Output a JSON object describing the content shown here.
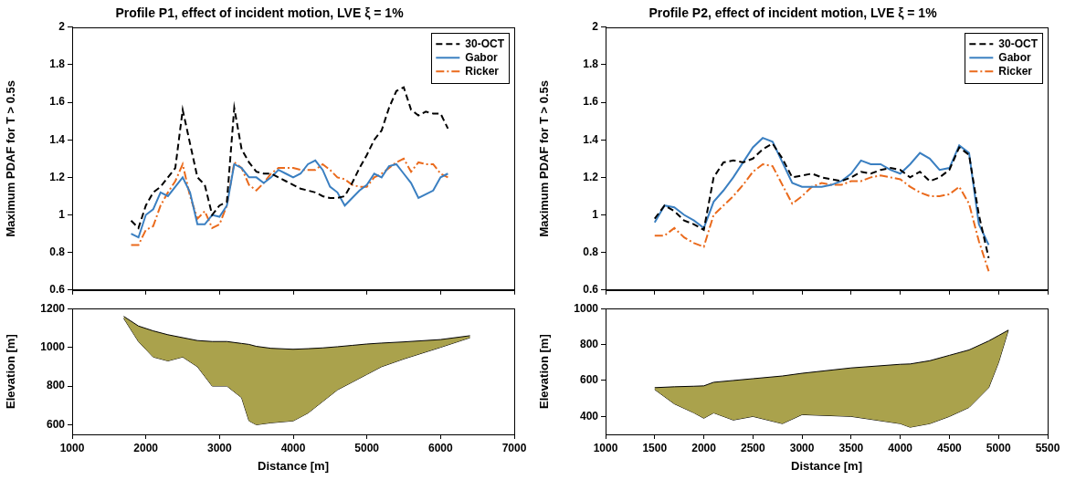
{
  "chart_data": [
    {
      "type": "line",
      "title": "Profile P1, effect of incident motion, LVE ξ = 1%",
      "ylabel": "Maximum PDAF for T > 0.5s",
      "x": [
        1800,
        1900,
        2000,
        2100,
        2200,
        2300,
        2400,
        2500,
        2600,
        2700,
        2800,
        2900,
        3000,
        3100,
        3200,
        3300,
        3400,
        3500,
        3600,
        3700,
        3800,
        3900,
        4000,
        4100,
        4200,
        4300,
        4400,
        4500,
        4600,
        4700,
        4800,
        4900,
        5000,
        5100,
        5200,
        5300,
        5400,
        5500,
        5600,
        5700,
        5800,
        5900,
        6000,
        6100
      ],
      "series": [
        {
          "name": "30-OCT",
          "color": "#000000",
          "line_style": "dashed",
          "values": [
            0.97,
            0.93,
            1.05,
            1.12,
            1.15,
            1.2,
            1.25,
            1.56,
            1.38,
            1.2,
            1.16,
            1.0,
            1.05,
            1.07,
            1.57,
            1.35,
            1.28,
            1.23,
            1.22,
            1.22,
            1.2,
            1.18,
            1.16,
            1.14,
            1.13,
            1.12,
            1.1,
            1.09,
            1.09,
            1.1,
            1.17,
            1.25,
            1.32,
            1.4,
            1.45,
            1.57,
            1.66,
            1.68,
            1.56,
            1.53,
            1.55,
            1.54,
            1.54,
            1.46
          ]
        },
        {
          "name": "Gabor",
          "color": "#3a7fc1",
          "line_style": "solid",
          "values": [
            0.9,
            0.88,
            1.0,
            1.03,
            1.12,
            1.1,
            1.15,
            1.2,
            1.12,
            0.95,
            0.95,
            1.0,
            0.99,
            1.05,
            1.27,
            1.25,
            1.2,
            1.2,
            1.17,
            1.2,
            1.24,
            1.22,
            1.2,
            1.22,
            1.27,
            1.29,
            1.24,
            1.15,
            1.12,
            1.05,
            1.09,
            1.13,
            1.16,
            1.22,
            1.2,
            1.26,
            1.27,
            1.22,
            1.17,
            1.09,
            1.11,
            1.13,
            1.2,
            1.22
          ]
        },
        {
          "name": "Ricker",
          "color": "#ea6a1c",
          "line_style": "dashdot",
          "values": [
            0.84,
            0.84,
            0.92,
            0.94,
            1.05,
            1.12,
            1.18,
            1.27,
            1.1,
            0.98,
            1.02,
            0.93,
            0.95,
            1.05,
            1.28,
            1.25,
            1.16,
            1.13,
            1.17,
            1.22,
            1.25,
            1.25,
            1.25,
            1.24,
            1.24,
            1.24,
            1.27,
            1.24,
            1.2,
            1.19,
            1.16,
            1.15,
            1.15,
            1.2,
            1.22,
            1.25,
            1.28,
            1.3,
            1.23,
            1.28,
            1.27,
            1.27,
            1.22,
            1.2
          ]
        }
      ],
      "xlim": [
        1000,
        7000
      ],
      "xticks": [
        1000,
        2000,
        3000,
        4000,
        5000,
        6000,
        7000
      ],
      "ylim": [
        0.6,
        2
      ],
      "yticks": [
        0.6,
        0.8,
        1,
        1.2,
        1.4,
        1.6,
        1.8,
        2
      ],
      "grid": false,
      "legend": "upper right",
      "tick_labels": "y"
    },
    {
      "type": "area",
      "xlabel": "Distance [m]",
      "ylabel": "Elevation [m]",
      "x": [
        1700,
        1900,
        2100,
        2300,
        2500,
        2700,
        2900,
        3100,
        3300,
        3400,
        3500,
        3700,
        4000,
        4200,
        4400,
        4600,
        4800,
        5000,
        5200,
        5500,
        6000,
        6400
      ],
      "series": [
        {
          "color": "#aaa24c",
          "values": [
            1160,
            1110,
            1085,
            1065,
            1050,
            1035,
            1030,
            1030,
            1020,
            1015,
            1005,
            995,
            990,
            993,
            997,
            1003,
            1010,
            1017,
            1022,
            1028,
            1040,
            1060
          ]
        },
        {
          "color": "#aaa24c",
          "values": [
            1150,
            1030,
            950,
            930,
            950,
            900,
            800,
            800,
            740,
            620,
            600,
            610,
            620,
            660,
            720,
            780,
            820,
            860,
            900,
            940,
            1000,
            1050
          ]
        }
      ],
      "xlim": [
        1000,
        7000
      ],
      "xticks": [
        1000,
        2000,
        3000,
        4000,
        5000,
        6000,
        7000
      ],
      "ylim": [
        550,
        1200
      ],
      "yticks": [
        600,
        800,
        1000,
        1200
      ],
      "grid": false
    },
    {
      "type": "line",
      "title": "Profile P2, effect of incident motion, LVE ξ = 1%",
      "ylabel": "Maximum PDAF for T > 0.5s",
      "x": [
        1500,
        1600,
        1700,
        1800,
        1900,
        2000,
        2100,
        2200,
        2300,
        2400,
        2500,
        2600,
        2700,
        2800,
        2900,
        3000,
        3100,
        3200,
        3300,
        3400,
        3500,
        3600,
        3700,
        3800,
        3900,
        4000,
        4100,
        4200,
        4300,
        4400,
        4500,
        4600,
        4700,
        4800,
        4900
      ],
      "series": [
        {
          "name": "30-OCT",
          "color": "#000000",
          "line_style": "dashed",
          "values": [
            0.98,
            1.05,
            1.02,
            0.97,
            0.95,
            0.92,
            1.2,
            1.28,
            1.29,
            1.28,
            1.3,
            1.35,
            1.38,
            1.3,
            1.2,
            1.21,
            1.22,
            1.2,
            1.19,
            1.18,
            1.2,
            1.23,
            1.22,
            1.24,
            1.25,
            1.24,
            1.2,
            1.23,
            1.18,
            1.2,
            1.24,
            1.36,
            1.32,
            1.0,
            0.77
          ]
        },
        {
          "name": "Gabor",
          "color": "#3a7fc1",
          "line_style": "solid",
          "values": [
            0.96,
            1.05,
            1.04,
            1.0,
            0.97,
            0.93,
            1.07,
            1.13,
            1.2,
            1.28,
            1.36,
            1.41,
            1.39,
            1.28,
            1.17,
            1.15,
            1.15,
            1.15,
            1.16,
            1.18,
            1.22,
            1.29,
            1.27,
            1.27,
            1.24,
            1.22,
            1.27,
            1.33,
            1.3,
            1.24,
            1.25,
            1.37,
            1.33,
            0.95,
            0.84
          ]
        },
        {
          "name": "Ricker",
          "color": "#ea6a1c",
          "line_style": "dashdot",
          "values": [
            0.89,
            0.89,
            0.93,
            0.88,
            0.85,
            0.83,
            1.0,
            1.05,
            1.1,
            1.16,
            1.23,
            1.27,
            1.26,
            1.16,
            1.06,
            1.1,
            1.15,
            1.17,
            1.16,
            1.16,
            1.18,
            1.18,
            1.2,
            1.21,
            1.2,
            1.19,
            1.15,
            1.12,
            1.1,
            1.1,
            1.11,
            1.15,
            1.06,
            0.86,
            0.7
          ]
        }
      ],
      "xlim": [
        1000,
        5500
      ],
      "xticks": [
        1000,
        1500,
        2000,
        2500,
        3000,
        3500,
        4000,
        4500,
        5000,
        5500
      ],
      "ylim": [
        0.6,
        2
      ],
      "yticks": [
        0.6,
        0.8,
        1,
        1.2,
        1.4,
        1.6,
        1.8,
        2
      ],
      "grid": false,
      "legend": "upper right",
      "tick_labels": "y"
    },
    {
      "type": "area",
      "xlabel": "Distance [m]",
      "ylabel": "Elevation [m]",
      "x": [
        1500,
        1700,
        1900,
        2000,
        2100,
        2300,
        2500,
        2800,
        3000,
        3500,
        4000,
        4100,
        4300,
        4500,
        4700,
        4900,
        5000,
        5100
      ],
      "series": [
        {
          "color": "#aaa24c",
          "values": [
            560,
            565,
            568,
            570,
            590,
            600,
            610,
            625,
            640,
            670,
            690,
            692,
            710,
            740,
            770,
            820,
            850,
            880
          ]
        },
        {
          "color": "#aaa24c",
          "values": [
            550,
            470,
            420,
            390,
            420,
            380,
            400,
            360,
            410,
            400,
            360,
            340,
            360,
            400,
            450,
            560,
            700,
            880
          ]
        }
      ],
      "xlim": [
        1000,
        5500
      ],
      "xticks": [
        1000,
        1500,
        2000,
        2500,
        3000,
        3500,
        4000,
        4500,
        5000,
        5500
      ],
      "ylim": [
        300,
        1000
      ],
      "yticks": [
        400,
        600,
        800,
        1000
      ],
      "grid": false
    }
  ]
}
